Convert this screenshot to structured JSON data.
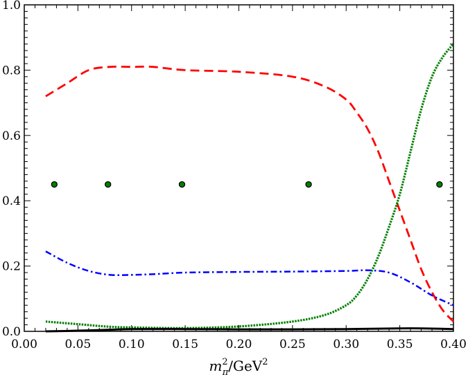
{
  "chart_data": {
    "type": "line",
    "xlabel_parts": {
      "base": "m",
      "sup": "2",
      "sub": "π",
      "rest": "/GeV",
      "rest_sup": "2"
    },
    "xlim": [
      0.0,
      0.4
    ],
    "ylim": [
      0.0,
      1.0
    ],
    "x_ticks": [
      "0.00",
      "0.05",
      "0.10",
      "0.15",
      "0.20",
      "0.25",
      "0.30",
      "0.35",
      "0.40"
    ],
    "y_ticks": [
      "0.0",
      "0.2",
      "0.4",
      "0.6",
      "0.8",
      "1.0"
    ],
    "grid": false,
    "series": [
      {
        "style": "dashed",
        "color": "#ff0000",
        "x": [
          0.02,
          0.04,
          0.06,
          0.08,
          0.1,
          0.12,
          0.15,
          0.2,
          0.25,
          0.28,
          0.3,
          0.31,
          0.32,
          0.33,
          0.34,
          0.35,
          0.36,
          0.37,
          0.38,
          0.39,
          0.4
        ],
        "y": [
          0.72,
          0.76,
          0.8,
          0.81,
          0.81,
          0.81,
          0.8,
          0.795,
          0.78,
          0.75,
          0.71,
          0.67,
          0.62,
          0.55,
          0.46,
          0.37,
          0.28,
          0.19,
          0.12,
          0.065,
          0.03
        ]
      },
      {
        "style": "dotted",
        "color": "#008000",
        "x": [
          0.02,
          0.05,
          0.08,
          0.1,
          0.15,
          0.2,
          0.25,
          0.28,
          0.3,
          0.31,
          0.32,
          0.33,
          0.34,
          0.35,
          0.36,
          0.37,
          0.38,
          0.39,
          0.4
        ],
        "y": [
          0.03,
          0.022,
          0.014,
          0.012,
          0.01,
          0.015,
          0.03,
          0.05,
          0.08,
          0.11,
          0.16,
          0.23,
          0.32,
          0.42,
          0.55,
          0.68,
          0.78,
          0.84,
          0.88
        ]
      },
      {
        "style": "dashdot",
        "color": "#0000ff",
        "x": [
          0.02,
          0.04,
          0.06,
          0.08,
          0.1,
          0.12,
          0.15,
          0.2,
          0.25,
          0.3,
          0.32,
          0.34,
          0.36,
          0.38,
          0.4
        ],
        "y": [
          0.245,
          0.21,
          0.185,
          0.173,
          0.173,
          0.175,
          0.18,
          0.182,
          0.183,
          0.185,
          0.187,
          0.18,
          0.15,
          0.11,
          0.08
        ]
      },
      {
        "style": "solid",
        "color": "#000000",
        "x": [
          0.02,
          0.05,
          0.08,
          0.1,
          0.15,
          0.2,
          0.25,
          0.3,
          0.35,
          0.37,
          0.4
        ],
        "y": [
          0.0,
          0.002,
          0.005,
          0.007,
          0.007,
          0.006,
          0.006,
          0.007,
          0.009,
          0.009,
          0.007
        ]
      }
    ],
    "points": {
      "color": "#008000",
      "x": [
        0.028,
        0.078,
        0.147,
        0.265,
        0.387
      ],
      "y": [
        0.45,
        0.45,
        0.45,
        0.45,
        0.45
      ]
    }
  }
}
